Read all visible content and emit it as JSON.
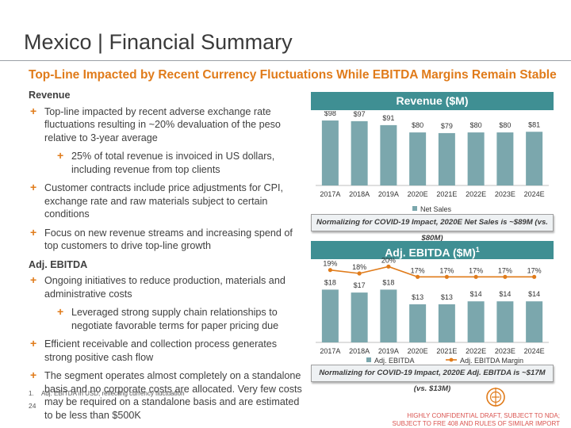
{
  "slide": {
    "title": "Mexico | Financial Summary",
    "subtitle": "Top-Line Impacted by Recent Currency Fluctuations While EBITDA Margins Remain Stable",
    "page_number": "24",
    "confidential_line1": "HIGHLY CONFIDENTIAL DRAFT, SUBJECT TO NDA;",
    "confidential_line2": "SUBJECT TO FRE 408 AND RULES OF SIMILAR IMPORT",
    "footnote_number": "1.",
    "footnote_text": "Adj. EBITDA in USD, reflecting currency fluctuation",
    "accent_color": "#e07b1a",
    "teal_color": "#3f8f93",
    "bar_color": "#7ba7ad"
  },
  "revenue_section": {
    "heading": "Revenue",
    "bullets": [
      "Top-line impacted by recent adverse exchange rate fluctuations resulting in ~20% devaluation of the peso relative to 3-year average",
      "25% of total revenue is invoiced in US dollars, including revenue from top clients",
      "Customer contracts include price adjustments for CPI, exchange rate and raw materials subject to certain conditions",
      "Focus on new revenue streams and increasing spend of top customers to drive top-line growth"
    ]
  },
  "ebitda_section": {
    "heading": "Adj. EBITDA",
    "bullets": [
      "Ongoing initiatives to reduce production, materials and administrative costs",
      "Leveraged strong supply chain relationships to negotiate favorable terms for paper pricing due",
      "Efficient receivable and collection process generates strong positive cash flow",
      "The segment operates almost completely on a standalone basis and no corporate costs are allocated. Very few costs may be required on a standalone basis and are estimated to be less than $500K"
    ]
  },
  "revenue_panel": {
    "header": "Revenue ($M)",
    "note": "Normalizing for COVID-19 Impact, 2020E Net Sales is ~$89M (vs. $80M)"
  },
  "ebitda_panel": {
    "header": "Adj. EBITDA ($M)",
    "header_sup": "1",
    "note": "Normalizing for COVID-19 Impact, 2020E Adj. EBITDA is ~$17M (vs. $13M)"
  },
  "chart_data": [
    {
      "type": "bar",
      "title": "Revenue ($M)",
      "categories": [
        "2017A",
        "2018A",
        "2019A",
        "2020E",
        "2021E",
        "2022E",
        "2023E",
        "2024E"
      ],
      "series": [
        {
          "name": "Net Sales",
          "values": [
            98,
            97,
            91,
            80,
            79,
            80,
            80,
            81
          ],
          "labels": [
            "$98",
            "$97",
            "$91",
            "$80",
            "$79",
            "$80",
            "$80",
            "$81"
          ]
        }
      ],
      "ylim": [
        0,
        110
      ],
      "legend": "bottom",
      "grid": false
    },
    {
      "type": "bar",
      "title": "Adj. EBITDA ($M)",
      "categories": [
        "2017A",
        "2018A",
        "2019A",
        "2020E",
        "2021E",
        "2022E",
        "2023E",
        "2024E"
      ],
      "series": [
        {
          "name": "Adj. EBITDA",
          "kind": "bar",
          "values": [
            18,
            17,
            18,
            13,
            13,
            14,
            14,
            14
          ],
          "labels": [
            "$18",
            "$17",
            "$18",
            "$13",
            "$13",
            "$14",
            "$14",
            "$14"
          ]
        },
        {
          "name": "Adj. EBITDA Margin",
          "kind": "line",
          "values": [
            19,
            18,
            20,
            17,
            17,
            17,
            17,
            17
          ],
          "labels": [
            "19%",
            "18%",
            "20%",
            "17%",
            "17%",
            "17%",
            "17%",
            "17%"
          ]
        }
      ],
      "ylim": [
        0,
        20
      ],
      "margin_ylim": [
        0,
        21
      ],
      "legend": "bottom",
      "grid": false
    }
  ]
}
